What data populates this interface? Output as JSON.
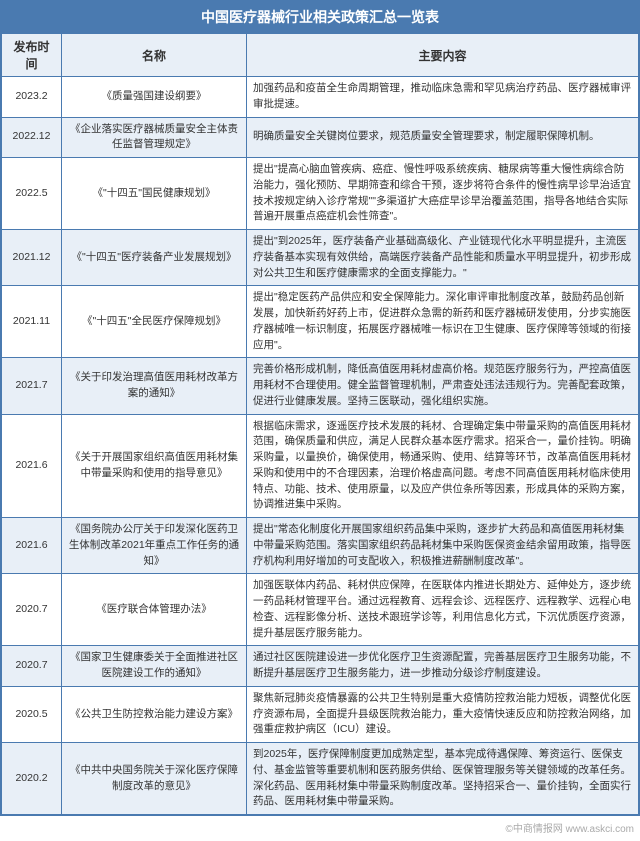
{
  "title": "中国医疗器械行业相关政策汇总一览表",
  "headers": {
    "date": "发布时间",
    "name": "名称",
    "content": "主要内容"
  },
  "rows": [
    {
      "date": "2023.2",
      "name": "《质量强国建设纲要》",
      "content": "加强药品和疫苗全生命周期管理，推动临床急需和罕见病治疗药品、医疗器械审评审批提速。"
    },
    {
      "date": "2022.12",
      "name": "《企业落实医疗器械质量安全主体责任监督管理规定》",
      "content": "明确质量安全关键岗位要求，规范质量安全管理要求，制定履职保障机制。"
    },
    {
      "date": "2022.5",
      "name": "《\"十四五\"国民健康规划》",
      "content": "提出\"提高心脑血管疾病、癌症、慢性呼吸系统疾病、糖尿病等重大慢性病综合防治能力，强化预防、早期筛查和综合干预，逐步将符合条件的慢性病早诊早治适宜技术按规定纳入诊疗常规\"\"多渠道扩大癌症早诊早治覆盖范围，指导各地结合实际普遍开展重点癌症机会性筛查\"。"
    },
    {
      "date": "2021.12",
      "name": "《\"十四五\"医疗装备产业发展规划》",
      "content": "提出\"到2025年，医疗装备产业基础高级化、产业链现代化水平明显提升，主流医疗装备基本实现有效供给，高端医疗装备产品性能和质量水平明显提升，初步形成对公共卫生和医疗健康需求的全面支撑能力。\""
    },
    {
      "date": "2021.11",
      "name": "《\"十四五\"全民医疗保障规划》",
      "content": "提出\"稳定医药产品供应和安全保障能力。深化审评审批制度改革，鼓励药品创新发展，加快新药好药上市，促进群众急需的新药和医疗器械研发使用，分步实施医疗器械唯一标识制度，拓展医疗器械唯一标识在卫生健康、医疗保障等领域的衔接应用\"。"
    },
    {
      "date": "2021.7",
      "name": "《关于印发治理高值医用耗材改革方案的通知》",
      "content": "完善价格形成机制，降低高值医用耗材虚高价格。规范医疗服务行为，严控高值医用耗材不合理使用。健全监督管理机制，严肃查处违法违规行为。完善配套政策，促进行业健康发展。坚持三医联动，强化组织实施。"
    },
    {
      "date": "2021.6",
      "name": "《关于开展国家组织高值医用耗材集中带量采购和使用的指导意见》",
      "content": "根据临床需求，逐遥医疗技术发展的耗材、合理确定集中带量采购的高值医用耗材范围，确保质量和供应，满足人民群众基本医疗需求。招采合一，量价挂钩。明确采购量，以量换价，确保使用，畅通采购、使用、结算等环节，改革高值医用耗材采购和使用中的不合理因素，治理价格虚高问题。考虑不同高值医用耗材临床使用特点、功能、技术、使用原量，以及应产供位条所等因素，形成具体的采购方案，协调推进集中采购。"
    },
    {
      "date": "2021.6",
      "name": "《国务院办公厅关于印发深化医药卫生体制改革2021年重点工作任务的通知》",
      "content": "提出\"常态化制度化开展国家组织药品集中采购，逐步扩大药品和高值医用耗材集中带量采购范围。落实国家组织药品耗材集中采购医保资金结余留用政策，指导医疗机构利用好增加的可支配收入，积极推进薪酬制度改革\"。"
    },
    {
      "date": "2020.7",
      "name": "《医疗联合体管理办法》",
      "content": "加强医联体内药品、耗材供应保障，在医联体内推进长期处方、延伸处方，逐步统一药品耗材管理平台。通过远程教育、远程会诊、远程医疗、远程教学、远程心电检查、远程影像分析、送技术跟班学诊等，利用信息化方式，下沉优质医疗资源，提升基层医疗服务能力。"
    },
    {
      "date": "2020.7",
      "name": "《国家卫生健康委关于全面推进社区医院建设工作的通知》",
      "content": "通过社区医院建设进一步优化医疗卫生资源配置，完善基层医疗卫生服务功能，不断提升基层医疗卫生服务能力，进一步推动分级诊疗制度建设。"
    },
    {
      "date": "2020.5",
      "name": "《公共卫生防控救治能力建设方案》",
      "content": "聚焦新冠肺炎疫情暴露的公共卫生特别是重大疫情防控救治能力短板，调整优化医疗资源布局，全面提升县级医院救治能力，重大疫情快速反应和防控救治网络，加强重症救护病区（ICU）建设。"
    },
    {
      "date": "2020.2",
      "name": "《中共中央国务院关于深化医疗保障制度改革的意见》",
      "content": "到2025年，医疗保障制度更加成熟定型，基本完成待遇保障、筹资运行、医保支付、基金监管等重要机制和医药服务供给、医保管理服务等关键领域的改革任务。深化药品、医用耗材集中带量采购制度改革。坚持招采合一、量价挂钩，全面实行药品、医用耗材集中带量采购。"
    }
  ],
  "footer": "©中商情报网 www.askci.com"
}
